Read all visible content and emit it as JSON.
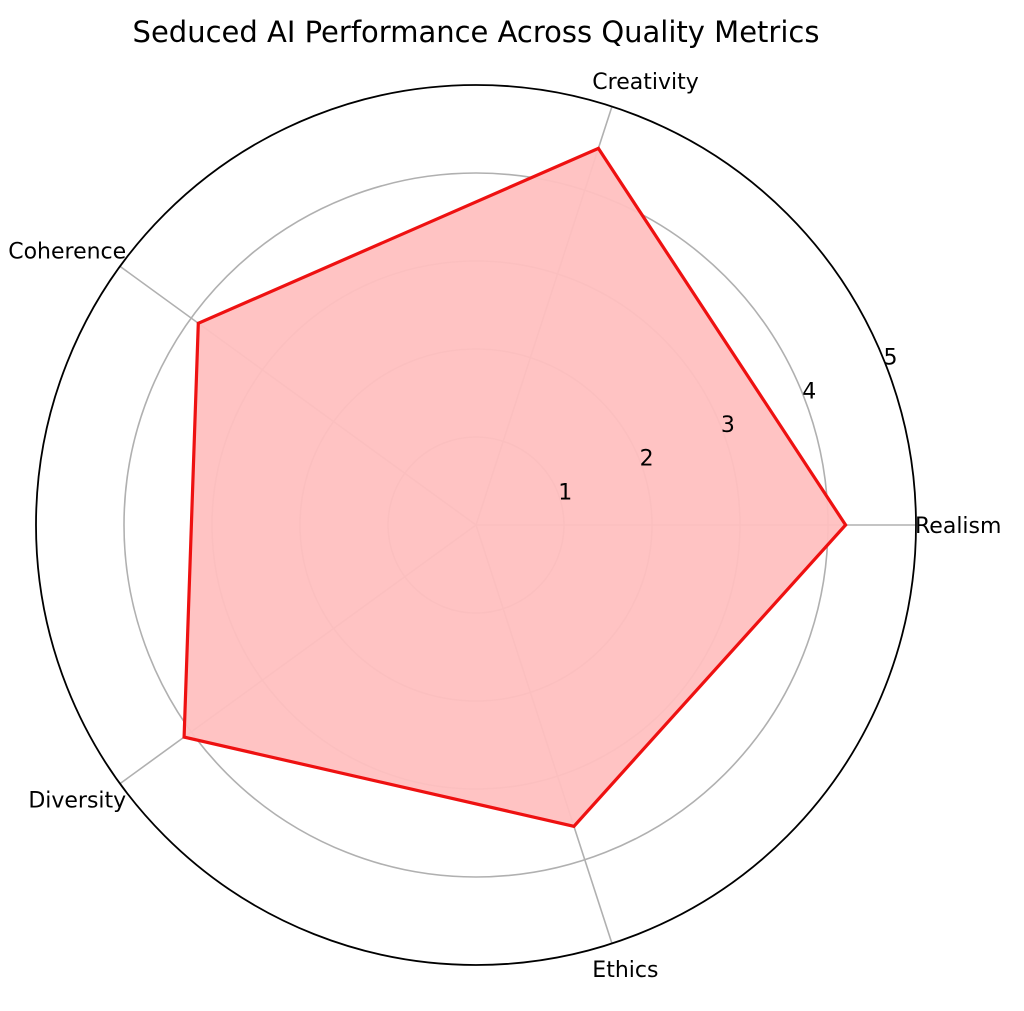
{
  "chart_data": {
    "type": "radar",
    "title": "Seduced AI Performance Across Quality Metrics",
    "categories": [
      "Realism",
      "Creativity",
      "Coherence",
      "Diversity",
      "Ethics"
    ],
    "values": [
      4.2,
      4.5,
      3.9,
      4.1,
      3.6
    ],
    "rlim": [
      0,
      5
    ],
    "radial_ticks": [
      "1",
      "2",
      "3",
      "4",
      "5"
    ],
    "grid": true,
    "series_color": "#ee1111",
    "fill_color": "#ffc0c0",
    "grid_color": "#b0b0b0",
    "frame_color": "#000000"
  }
}
